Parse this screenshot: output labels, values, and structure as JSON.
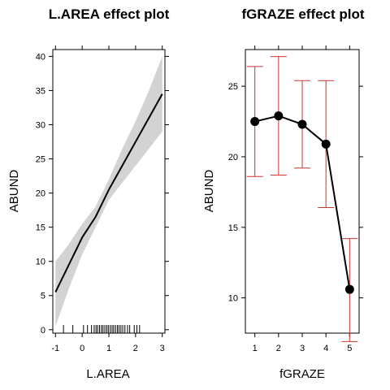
{
  "chart_data": [
    {
      "type": "line",
      "title": "L.AREA effect plot",
      "xlabel": "L.AREA",
      "ylabel": "ABUND",
      "xlim": [
        -1.1,
        3.1
      ],
      "ylim": [
        -0.5,
        41
      ],
      "xticks": [
        -1,
        0,
        1,
        2,
        3
      ],
      "yticks": [
        0,
        5,
        10,
        15,
        20,
        25,
        30,
        35,
        40
      ],
      "grid": false,
      "x": [
        -1.0,
        -0.5,
        0.0,
        0.5,
        1.0,
        1.5,
        2.0,
        2.5,
        3.0
      ],
      "y": [
        5.5,
        9.5,
        13.5,
        16.5,
        20.5,
        24.0,
        27.5,
        31.0,
        34.5
      ],
      "lower": [
        0.5,
        6.0,
        11.0,
        15.0,
        19.0,
        21.5,
        24.0,
        26.5,
        29.0
      ],
      "upper": [
        10.0,
        12.5,
        15.5,
        18.0,
        22.0,
        26.5,
        30.5,
        35.0,
        40.0
      ],
      "band_color": "#d3d3d3",
      "line_color": "#000000",
      "rug": [
        -0.7,
        -0.35,
        0.05,
        0.2,
        0.35,
        0.45,
        0.52,
        0.58,
        0.65,
        0.72,
        0.78,
        0.85,
        0.92,
        0.98,
        1.05,
        1.12,
        1.18,
        1.25,
        1.32,
        1.38,
        1.45,
        1.52,
        1.6,
        1.7,
        1.78,
        1.95,
        2.05,
        2.15
      ]
    },
    {
      "type": "scatter",
      "title": "fGRAZE effect plot",
      "xlabel": "fGRAZE",
      "ylabel": "ABUND",
      "xlim": [
        0.6,
        5.4
      ],
      "ylim": [
        7.5,
        27.6
      ],
      "xticks": [
        1,
        2,
        3,
        4,
        5
      ],
      "yticks": [
        10,
        15,
        20,
        25
      ],
      "grid": false,
      "x": [
        1,
        2,
        3,
        4,
        5
      ],
      "y": [
        22.5,
        22.9,
        22.3,
        20.9,
        10.6
      ],
      "lower": [
        18.6,
        18.7,
        19.2,
        16.4,
        6.9
      ],
      "upper": [
        26.4,
        27.1,
        25.4,
        25.4,
        14.2
      ],
      "point_color": "#000000",
      "errorbar_color": "#cc3333"
    }
  ]
}
